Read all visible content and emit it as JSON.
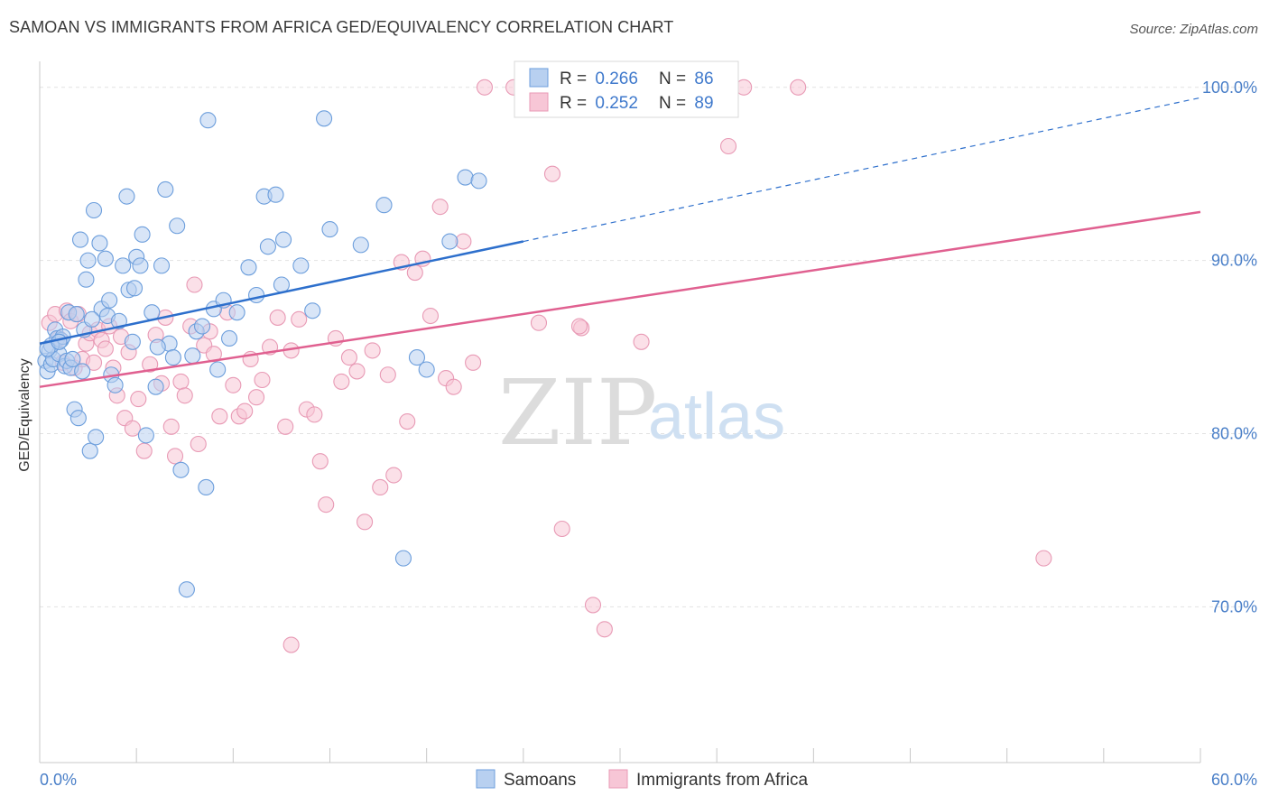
{
  "header": {
    "title": "SAMOAN VS IMMIGRANTS FROM AFRICA GED/EQUIVALENCY CORRELATION CHART",
    "source": "Source: ZipAtlas.com"
  },
  "watermark": {
    "zip": "ZIP",
    "atlas": "atlas"
  },
  "legend": {
    "rows": [
      {
        "r_label": "R = ",
        "r_value": "0.266",
        "n_label": "N = ",
        "n_value": "86"
      },
      {
        "r_label": "R = ",
        "r_value": "0.252",
        "n_label": "N = ",
        "n_value": "89"
      }
    ]
  },
  "bottom_legend": [
    "Samoans",
    "Immigrants from Africa"
  ],
  "chart_data": {
    "type": "scatter",
    "title": "SAMOAN VS IMMIGRANTS FROM AFRICA GED/EQUIVALENCY CORRELATION CHART",
    "xlabel": "",
    "ylabel": "GED/Equivalency",
    "xlim": [
      0,
      60
    ],
    "ylim": [
      61,
      101.5
    ],
    "x_tick_labels": [
      "0.0%",
      "60.0%"
    ],
    "y_ticks": [
      70,
      80,
      90,
      100
    ],
    "y_tick_labels": [
      "70.0%",
      "80.0%",
      "90.0%",
      "100.0%"
    ],
    "grid": true,
    "legend_position": "top-center",
    "colors": {
      "samoans_fill": "#b8d0f0",
      "samoans_stroke": "#6c9edc",
      "samoans_line": "#2d6fcc",
      "africa_fill": "#f7c6d6",
      "africa_stroke": "#e89ab5",
      "africa_line": "#e06090"
    },
    "series": [
      {
        "name": "Samoans",
        "R": 0.266,
        "N": 86,
        "trend": {
          "x": [
            0,
            25
          ],
          "y": [
            85.2,
            91.1
          ],
          "dashed_to": [
            60,
            99.4
          ]
        },
        "points": [
          [
            0.3,
            84.2
          ],
          [
            0.4,
            83.6
          ],
          [
            0.5,
            84.8
          ],
          [
            0.6,
            84.0
          ],
          [
            0.7,
            84.3
          ],
          [
            0.8,
            86.0
          ],
          [
            0.9,
            85.5
          ],
          [
            1.0,
            84.6
          ],
          [
            1.1,
            85.4
          ],
          [
            1.2,
            85.6
          ],
          [
            1.3,
            83.9
          ],
          [
            1.4,
            84.2
          ],
          [
            1.5,
            87.0
          ],
          [
            1.6,
            83.8
          ],
          [
            1.7,
            84.3
          ],
          [
            1.8,
            81.4
          ],
          [
            2.0,
            80.9
          ],
          [
            2.1,
            91.2
          ],
          [
            2.2,
            83.6
          ],
          [
            2.3,
            86.0
          ],
          [
            2.4,
            88.9
          ],
          [
            2.5,
            90.0
          ],
          [
            2.6,
            79.0
          ],
          [
            2.8,
            92.9
          ],
          [
            2.9,
            79.8
          ],
          [
            3.1,
            91.0
          ],
          [
            3.2,
            87.2
          ],
          [
            3.4,
            90.1
          ],
          [
            3.5,
            86.8
          ],
          [
            3.7,
            83.4
          ],
          [
            3.9,
            82.8
          ],
          [
            4.1,
            86.5
          ],
          [
            4.3,
            89.7
          ],
          [
            4.5,
            93.7
          ],
          [
            4.6,
            88.3
          ],
          [
            4.8,
            85.3
          ],
          [
            5.0,
            90.2
          ],
          [
            5.2,
            89.7
          ],
          [
            5.3,
            91.5
          ],
          [
            5.5,
            79.9
          ],
          [
            5.8,
            87.0
          ],
          [
            6.0,
            82.7
          ],
          [
            6.3,
            89.7
          ],
          [
            6.5,
            94.1
          ],
          [
            6.7,
            85.2
          ],
          [
            6.9,
            84.4
          ],
          [
            7.1,
            92.0
          ],
          [
            7.3,
            77.9
          ],
          [
            7.6,
            71.0
          ],
          [
            7.9,
            84.5
          ],
          [
            8.1,
            85.9
          ],
          [
            8.4,
            86.2
          ],
          [
            8.7,
            98.1
          ],
          [
            8.6,
            76.9
          ],
          [
            9.0,
            87.2
          ],
          [
            9.2,
            83.7
          ],
          [
            9.5,
            87.7
          ],
          [
            9.8,
            85.5
          ],
          [
            10.2,
            87.0
          ],
          [
            10.8,
            89.6
          ],
          [
            11.2,
            88.0
          ],
          [
            11.6,
            93.7
          ],
          [
            11.8,
            90.8
          ],
          [
            12.2,
            93.8
          ],
          [
            12.6,
            91.2
          ],
          [
            12.5,
            88.6
          ],
          [
            13.5,
            89.7
          ],
          [
            14.1,
            87.1
          ],
          [
            14.7,
            98.2
          ],
          [
            15.0,
            91.8
          ],
          [
            16.6,
            90.9
          ],
          [
            17.8,
            93.2
          ],
          [
            18.8,
            72.8
          ],
          [
            19.5,
            84.4
          ],
          [
            20.0,
            83.7
          ],
          [
            21.2,
            91.1
          ],
          [
            22.0,
            94.8
          ],
          [
            22.7,
            94.6
          ],
          [
            3.6,
            87.7
          ],
          [
            2.7,
            86.6
          ],
          [
            1.9,
            86.9
          ],
          [
            4.9,
            88.4
          ],
          [
            6.1,
            85.0
          ],
          [
            0.6,
            85.1
          ],
          [
            0.4,
            84.9
          ],
          [
            1.0,
            85.3
          ]
        ]
      },
      {
        "name": "Immigrants from Africa",
        "R": 0.252,
        "N": 89,
        "trend": {
          "x": [
            0,
            60
          ],
          "y": [
            82.7,
            92.8
          ]
        },
        "points": [
          [
            0.5,
            86.4
          ],
          [
            0.8,
            86.9
          ],
          [
            1.0,
            85.5
          ],
          [
            1.2,
            84.1
          ],
          [
            1.4,
            87.1
          ],
          [
            1.6,
            86.5
          ],
          [
            1.8,
            83.8
          ],
          [
            2.0,
            86.9
          ],
          [
            2.2,
            84.3
          ],
          [
            2.4,
            85.2
          ],
          [
            2.6,
            85.8
          ],
          [
            2.8,
            84.1
          ],
          [
            3.0,
            86.0
          ],
          [
            3.2,
            85.4
          ],
          [
            3.4,
            84.9
          ],
          [
            3.6,
            86.2
          ],
          [
            3.8,
            83.8
          ],
          [
            4.0,
            82.2
          ],
          [
            4.2,
            85.6
          ],
          [
            4.4,
            80.9
          ],
          [
            4.6,
            84.7
          ],
          [
            4.8,
            80.3
          ],
          [
            5.1,
            82.0
          ],
          [
            5.4,
            79.0
          ],
          [
            5.7,
            84.0
          ],
          [
            6.0,
            85.7
          ],
          [
            6.3,
            82.9
          ],
          [
            6.5,
            86.7
          ],
          [
            6.8,
            80.4
          ],
          [
            7.0,
            78.7
          ],
          [
            7.3,
            83.0
          ],
          [
            7.5,
            82.2
          ],
          [
            7.8,
            86.2
          ],
          [
            8.0,
            88.6
          ],
          [
            8.2,
            79.4
          ],
          [
            8.5,
            85.1
          ],
          [
            8.8,
            85.9
          ],
          [
            9.0,
            84.6
          ],
          [
            9.3,
            81.0
          ],
          [
            9.7,
            87.0
          ],
          [
            10.0,
            82.8
          ],
          [
            10.3,
            81.0
          ],
          [
            10.6,
            81.3
          ],
          [
            10.9,
            84.3
          ],
          [
            11.2,
            82.1
          ],
          [
            11.5,
            83.1
          ],
          [
            11.9,
            85.0
          ],
          [
            12.3,
            86.7
          ],
          [
            12.7,
            80.4
          ],
          [
            13.0,
            84.8
          ],
          [
            13.4,
            86.6
          ],
          [
            13.8,
            81.4
          ],
          [
            14.2,
            81.1
          ],
          [
            14.5,
            78.4
          ],
          [
            14.8,
            75.9
          ],
          [
            15.3,
            85.5
          ],
          [
            15.6,
            83.0
          ],
          [
            16.0,
            84.4
          ],
          [
            16.4,
            83.6
          ],
          [
            16.8,
            74.9
          ],
          [
            17.2,
            84.8
          ],
          [
            17.6,
            76.9
          ],
          [
            18.0,
            83.4
          ],
          [
            18.3,
            77.6
          ],
          [
            18.7,
            89.9
          ],
          [
            19.0,
            80.7
          ],
          [
            19.4,
            89.3
          ],
          [
            19.8,
            90.1
          ],
          [
            20.2,
            86.8
          ],
          [
            20.7,
            93.1
          ],
          [
            21.0,
            83.2
          ],
          [
            21.4,
            82.7
          ],
          [
            21.9,
            91.1
          ],
          [
            22.4,
            84.1
          ],
          [
            23.0,
            100.0
          ],
          [
            24.5,
            100.0
          ],
          [
            25.8,
            86.4
          ],
          [
            26.5,
            95.0
          ],
          [
            27.0,
            74.5
          ],
          [
            28.0,
            86.1
          ],
          [
            28.6,
            70.1
          ],
          [
            29.2,
            68.7
          ],
          [
            31.1,
            85.3
          ],
          [
            35.6,
            96.6
          ],
          [
            36.4,
            100.0
          ],
          [
            39.2,
            100.0
          ],
          [
            51.9,
            72.8
          ],
          [
            13.0,
            67.8
          ],
          [
            27.9,
            86.2
          ]
        ]
      }
    ]
  }
}
